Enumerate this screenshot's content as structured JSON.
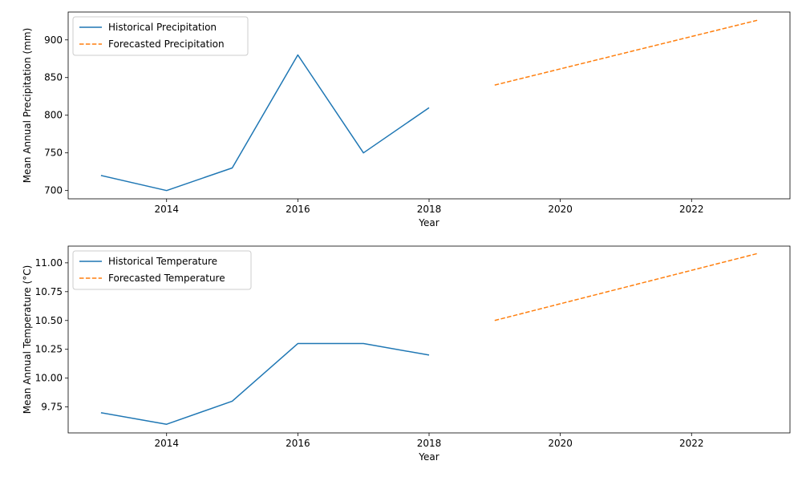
{
  "chart_data": [
    {
      "type": "line",
      "xlabel": "Year",
      "ylabel": "Mean Annual Precipitation (mm)",
      "xlim": [
        2012.5,
        2023.5
      ],
      "ylim": [
        689,
        937
      ],
      "xticks": [
        2014,
        2016,
        2018,
        2020,
        2022
      ],
      "yticks": [
        700,
        750,
        800,
        850,
        900
      ],
      "legend_position": "upper-left",
      "grid": false,
      "series": [
        {
          "name": "Historical Precipitation",
          "style": "solid",
          "color": "#1f77b4",
          "x": [
            2013,
            2014,
            2015,
            2016,
            2017,
            2018
          ],
          "y": [
            720,
            700,
            730,
            880,
            750,
            810
          ]
        },
        {
          "name": "Forecasted Precipitation",
          "style": "dashed",
          "color": "#ff7f0e",
          "x": [
            2019,
            2020,
            2021,
            2022,
            2023
          ],
          "y": [
            840,
            861.5,
            883,
            904.5,
            926
          ]
        }
      ]
    },
    {
      "type": "line",
      "xlabel": "Year",
      "ylabel": "Mean Annual Temperature (°C)",
      "xlim": [
        2012.5,
        2023.5
      ],
      "ylim": [
        9.525,
        11.145
      ],
      "xticks": [
        2014,
        2016,
        2018,
        2020,
        2022
      ],
      "yticks": [
        9.75,
        10.0,
        10.25,
        10.5,
        10.75,
        11.0
      ],
      "ytick_labels": [
        "9.75",
        "10.00",
        "10.25",
        "10.50",
        "10.75",
        "11.00"
      ],
      "legend_position": "upper-left",
      "grid": false,
      "series": [
        {
          "name": "Historical Temperature",
          "style": "solid",
          "color": "#1f77b4",
          "x": [
            2013,
            2014,
            2015,
            2016,
            2017,
            2018
          ],
          "y": [
            9.7,
            9.6,
            9.8,
            10.3,
            10.3,
            10.2
          ]
        },
        {
          "name": "Forecasted Temperature",
          "style": "dashed",
          "color": "#ff7f0e",
          "x": [
            2019,
            2020,
            2021,
            2022,
            2023
          ],
          "y": [
            10.5,
            10.645,
            10.79,
            10.935,
            11.08
          ]
        }
      ]
    }
  ]
}
